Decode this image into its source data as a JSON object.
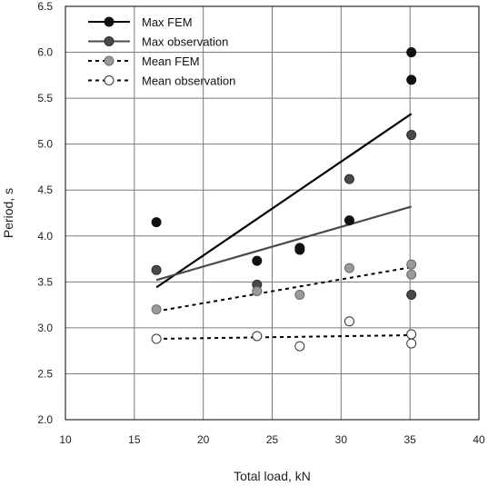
{
  "chart_data": {
    "type": "scatter",
    "xlabel": "Total load, kN",
    "ylabel": "Period, s",
    "xlim": [
      10,
      40
    ],
    "ylim": [
      2.0,
      6.5
    ],
    "xticks": [
      10,
      15,
      20,
      25,
      30,
      35,
      40
    ],
    "yticks": [
      2.0,
      2.5,
      3.0,
      3.5,
      4.0,
      4.5,
      5.0,
      5.5,
      6.0,
      6.5
    ],
    "grid": true,
    "legend_position": "top-left",
    "series": [
      {
        "name": "Max FEM",
        "marker_fill": "#111111",
        "marker_stroke": "#111111",
        "line_color": "#000000",
        "line_style": "solid",
        "points": [
          [
            16.6,
            4.15
          ],
          [
            23.9,
            3.73
          ],
          [
            27.0,
            3.87
          ],
          [
            27.0,
            3.85
          ],
          [
            30.6,
            4.17
          ],
          [
            35.1,
            6.0
          ],
          [
            35.1,
            5.7
          ]
        ],
        "trend": [
          [
            16.6,
            3.44
          ],
          [
            35.1,
            5.33
          ]
        ]
      },
      {
        "name": "Max observation",
        "marker_fill": "#4a4a4a",
        "marker_stroke": "#2a2a2a",
        "line_color": "#4a4a4a",
        "line_style": "solid",
        "points": [
          [
            16.6,
            3.63
          ],
          [
            23.9,
            3.47
          ],
          [
            30.6,
            4.62
          ],
          [
            35.1,
            5.1
          ],
          [
            35.1,
            3.36
          ]
        ],
        "trend": [
          [
            16.6,
            3.52
          ],
          [
            35.1,
            4.32
          ]
        ]
      },
      {
        "name": "Mean FEM",
        "marker_fill": "#9a9a9a",
        "marker_stroke": "#6a6a6a",
        "line_color": "#000000",
        "line_style": "dashed",
        "points": [
          [
            16.6,
            3.2
          ],
          [
            23.9,
            3.4
          ],
          [
            27.0,
            3.36
          ],
          [
            30.6,
            3.65
          ],
          [
            35.1,
            3.69
          ],
          [
            35.1,
            3.58
          ]
        ],
        "trend": [
          [
            16.6,
            3.18
          ],
          [
            35.1,
            3.66
          ]
        ]
      },
      {
        "name": "Mean observation",
        "marker_fill": "#ffffff",
        "marker_stroke": "#333333",
        "line_color": "#000000",
        "line_style": "dashed",
        "points": [
          [
            16.6,
            2.88
          ],
          [
            23.9,
            2.91
          ],
          [
            27.0,
            2.8
          ],
          [
            30.6,
            3.07
          ],
          [
            35.1,
            2.93
          ],
          [
            35.1,
            2.83
          ]
        ],
        "trend": [
          [
            16.6,
            2.88
          ],
          [
            35.1,
            2.92
          ]
        ]
      }
    ]
  }
}
